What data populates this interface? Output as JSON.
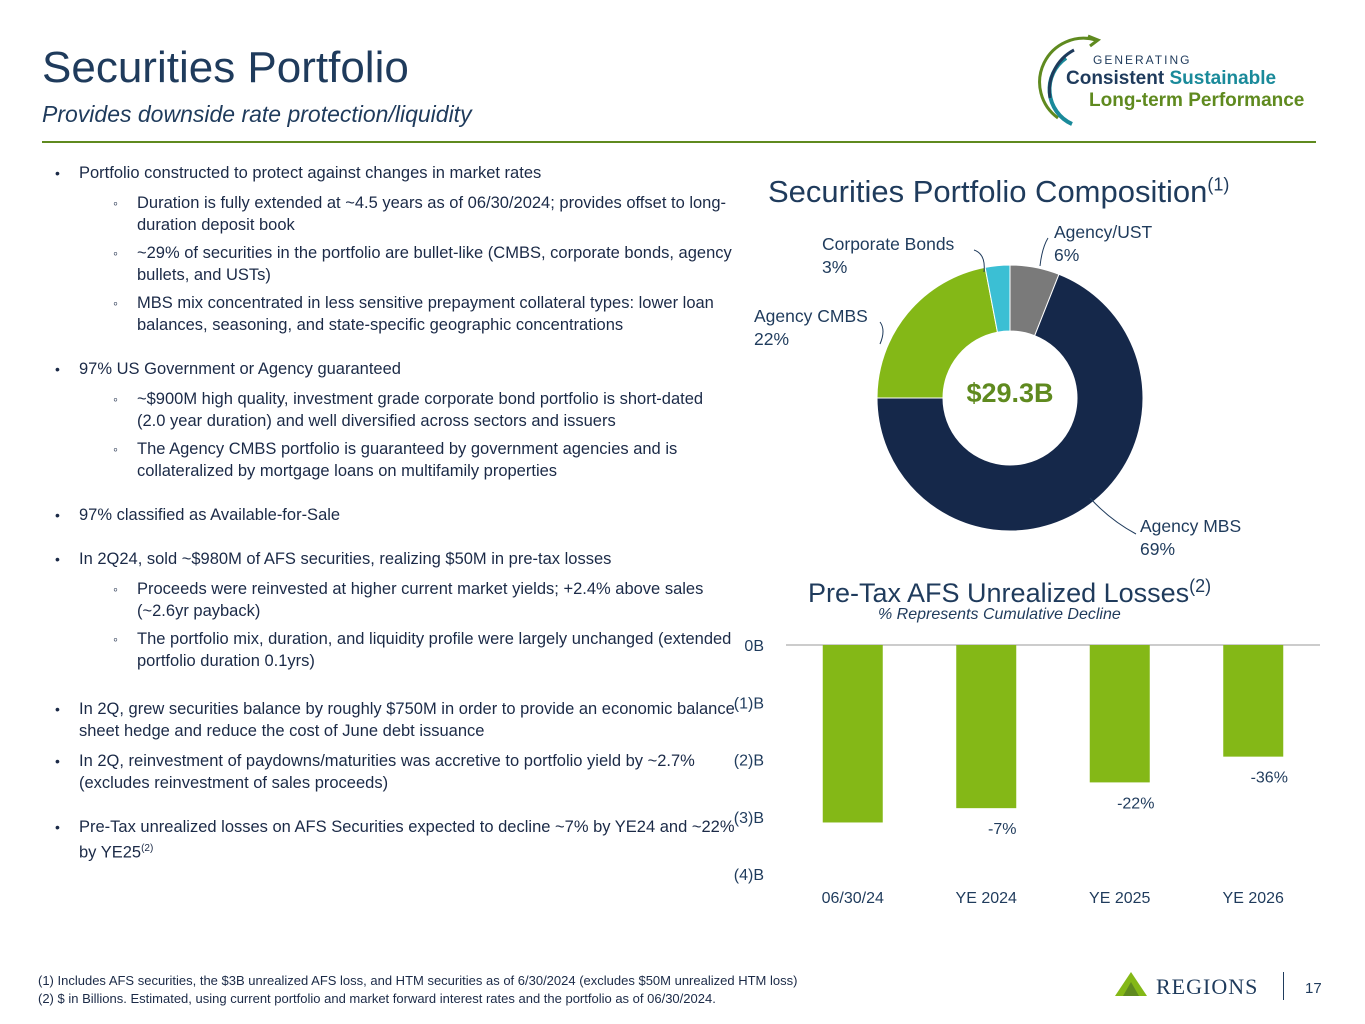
{
  "header": {
    "title": "Securities Portfolio",
    "subtitle": "Provides downside rate protection/liquidity",
    "logo_small": "GENERATING",
    "logo_word1": "Consistent",
    "logo_word2": "Sustainable",
    "logo_line2": "Long-term Performance",
    "brand_colors": {
      "navy": "#1f3b5c",
      "green": "#5f8a1f",
      "teal": "#1a8a9a"
    }
  },
  "bullets": [
    {
      "level": 1,
      "text": "Portfolio constructed to protect against changes in market rates"
    },
    {
      "level": 2,
      "text": "Duration is fully extended at ~4.5 years as of 06/30/2024; provides offset to long-duration deposit book"
    },
    {
      "level": 2,
      "text": "~29% of securities in the portfolio are bullet-like (CMBS, corporate bonds, agency bullets, and USTs)"
    },
    {
      "level": 2,
      "text": "MBS mix concentrated in less sensitive prepayment collateral types: lower loan balances, seasoning, and state-specific geographic concentrations"
    },
    {
      "level": 1,
      "text": "97% US Government or Agency guaranteed"
    },
    {
      "level": 2,
      "text": "~$900M high quality, investment grade corporate bond portfolio is short-dated (2.0 year duration) and well diversified across sectors and issuers"
    },
    {
      "level": 2,
      "text": "The Agency CMBS portfolio is guaranteed by government agencies and is collateralized by mortgage loans on multifamily properties"
    },
    {
      "level": 1,
      "text": "97% classified as Available-for-Sale"
    },
    {
      "level": 1,
      "text": "In 2Q24, sold ~$980M of AFS securities, realizing $50M in pre-tax losses"
    },
    {
      "level": 2,
      "text": "Proceeds were reinvested at higher current market yields; +2.4% above sales (~2.6yr payback)"
    },
    {
      "level": 2,
      "text": "The portfolio mix, duration, and liquidity profile were largely unchanged (extended portfolio duration 0.1yrs)"
    },
    {
      "level": 1,
      "text": "In 2Q, grew securities balance by roughly $750M in order to provide an economic balance sheet hedge and reduce the cost of June debt issuance"
    },
    {
      "level": 1,
      "text": "In 2Q, reinvestment of paydowns/maturities was  accretive to portfolio yield by ~2.7% (excludes reinvestment of sales proceeds)"
    },
    {
      "level": 1,
      "text": "Pre-Tax unrealized losses on AFS Securities expected to decline ~7% by YE24 and ~22% by YE25",
      "sup": "(2)"
    }
  ],
  "chart_data": [
    {
      "type": "pie",
      "variant": "donut",
      "title": "Securities Portfolio Composition",
      "title_sup": "(1)",
      "center_label": "$29.3B",
      "slices": [
        {
          "label": "Agency/UST",
          "value": 6,
          "display": "6%",
          "color": "#7a7a7a"
        },
        {
          "label": "Agency MBS",
          "value": 69,
          "display": "69%",
          "color": "#15284a"
        },
        {
          "label": "Agency CMBS",
          "value": 22,
          "display": "22%",
          "color": "#84b817"
        },
        {
          "label": "Corporate Bonds",
          "value": 3,
          "display": "3%",
          "color": "#3bbfd4"
        }
      ]
    },
    {
      "type": "bar",
      "title": "Pre-Tax AFS Unrealized Losses",
      "title_sup": "(2)",
      "subtitle": "% Represents Cumulative Decline",
      "categories": [
        "06/30/24",
        "YE 2024",
        "YE 2025",
        "YE 2026"
      ],
      "values": [
        -3.1,
        -2.85,
        -2.4,
        -1.95
      ],
      "data_labels": [
        "",
        "-7%",
        "-22%",
        "-36%"
      ],
      "ylim": [
        -4,
        0
      ],
      "yticks": [
        0,
        -1,
        -2,
        -3,
        -4
      ],
      "ytick_labels": [
        "0B",
        "(1)B",
        "(2)B",
        "(3)B",
        "(4)B"
      ],
      "bar_color": "#84b817",
      "grid": false
    }
  ],
  "footnotes": [
    "(1) Includes AFS securities, the $3B unrealized AFS loss, and HTM securities as of 6/30/2024 (excludes $50M unrealized HTM loss)",
    "(2) $ in Billions. Estimated, using current portfolio and market forward interest rates and the portfolio as of 06/30/2024."
  ],
  "footer": {
    "brand": "REGIONS",
    "page": "17"
  }
}
